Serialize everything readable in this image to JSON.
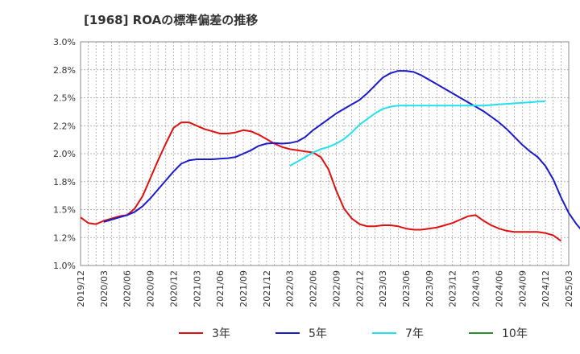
{
  "chart_data": {
    "type": "line",
    "title": "[1968]  ROAの標準偏差の推移",
    "xlabel": "",
    "ylabel": "",
    "ylim": [
      1.0,
      3.0
    ],
    "grid": true,
    "legend_position": "bottom",
    "y_ticks": [
      "1.0%",
      "1.2%",
      "1.5%",
      "1.8%",
      "2.0%",
      "2.2%",
      "2.5%",
      "2.8%",
      "3.0%"
    ],
    "x_ticks": [
      "2019/12",
      "2020/03",
      "2020/06",
      "2020/09",
      "2020/12",
      "2021/03",
      "2021/06",
      "2021/09",
      "2021/12",
      "2022/03",
      "2022/06",
      "2022/09",
      "2022/12",
      "2023/03",
      "2023/06",
      "2023/09",
      "2023/12",
      "2024/03",
      "2024/06",
      "2024/09",
      "2024/12",
      "2025/03"
    ],
    "series": [
      {
        "name": "3年",
        "color": "#e01010",
        "x_start": "2019/12",
        "values": [
          1.43,
          1.38,
          1.37,
          1.4,
          1.42,
          1.44,
          1.45,
          1.51,
          1.62,
          1.78,
          1.94,
          2.09,
          2.23,
          2.28,
          2.28,
          2.25,
          2.22,
          2.2,
          2.18,
          2.18,
          2.19,
          2.21,
          2.2,
          2.17,
          2.13,
          2.09,
          2.06,
          2.04,
          2.03,
          2.02,
          2.01,
          1.97,
          1.86,
          1.67,
          1.51,
          1.42,
          1.37,
          1.35,
          1.35,
          1.36,
          1.36,
          1.35,
          1.33,
          1.32,
          1.32,
          1.33,
          1.34,
          1.36,
          1.38,
          1.41,
          1.44,
          1.45,
          1.4,
          1.36,
          1.33,
          1.31,
          1.3,
          1.3,
          1.3,
          1.3,
          1.29,
          1.27,
          1.22
        ]
      },
      {
        "name": "5年",
        "color": "#1a1acc",
        "x_start": "2020/03",
        "values": [
          1.39,
          1.41,
          1.43,
          1.45,
          1.48,
          1.53,
          1.6,
          1.68,
          1.76,
          1.84,
          1.91,
          1.94,
          1.95,
          1.95,
          1.95,
          1.955,
          1.96,
          1.97,
          2.0,
          2.03,
          2.07,
          2.09,
          2.095,
          2.09,
          2.095,
          2.11,
          2.15,
          2.21,
          2.26,
          2.31,
          2.36,
          2.4,
          2.44,
          2.48,
          2.54,
          2.61,
          2.68,
          2.72,
          2.74,
          2.74,
          2.73,
          2.7,
          2.66,
          2.62,
          2.58,
          2.54,
          2.5,
          2.46,
          2.42,
          2.38,
          2.33,
          2.28,
          2.22,
          2.15,
          2.08,
          2.02,
          1.97,
          1.89,
          1.77,
          1.61,
          1.47,
          1.37,
          1.29
        ]
      },
      {
        "name": "7年",
        "color": "#22e0ee",
        "x_start": "2022/03",
        "values": [
          1.89,
          1.93,
          1.97,
          2.01,
          2.04,
          2.06,
          2.09,
          2.13,
          2.19,
          2.26,
          2.31,
          2.36,
          2.4,
          2.42,
          2.43,
          2.43,
          2.43,
          2.43,
          2.43,
          2.43,
          2.43,
          2.43,
          2.43,
          2.43,
          2.43,
          2.43,
          2.435,
          2.44,
          2.445,
          2.45,
          2.455,
          2.46,
          2.465,
          2.47
        ]
      },
      {
        "name": "10年",
        "color": "#2e8b2e",
        "x_start": "2024/12",
        "values": []
      }
    ]
  }
}
